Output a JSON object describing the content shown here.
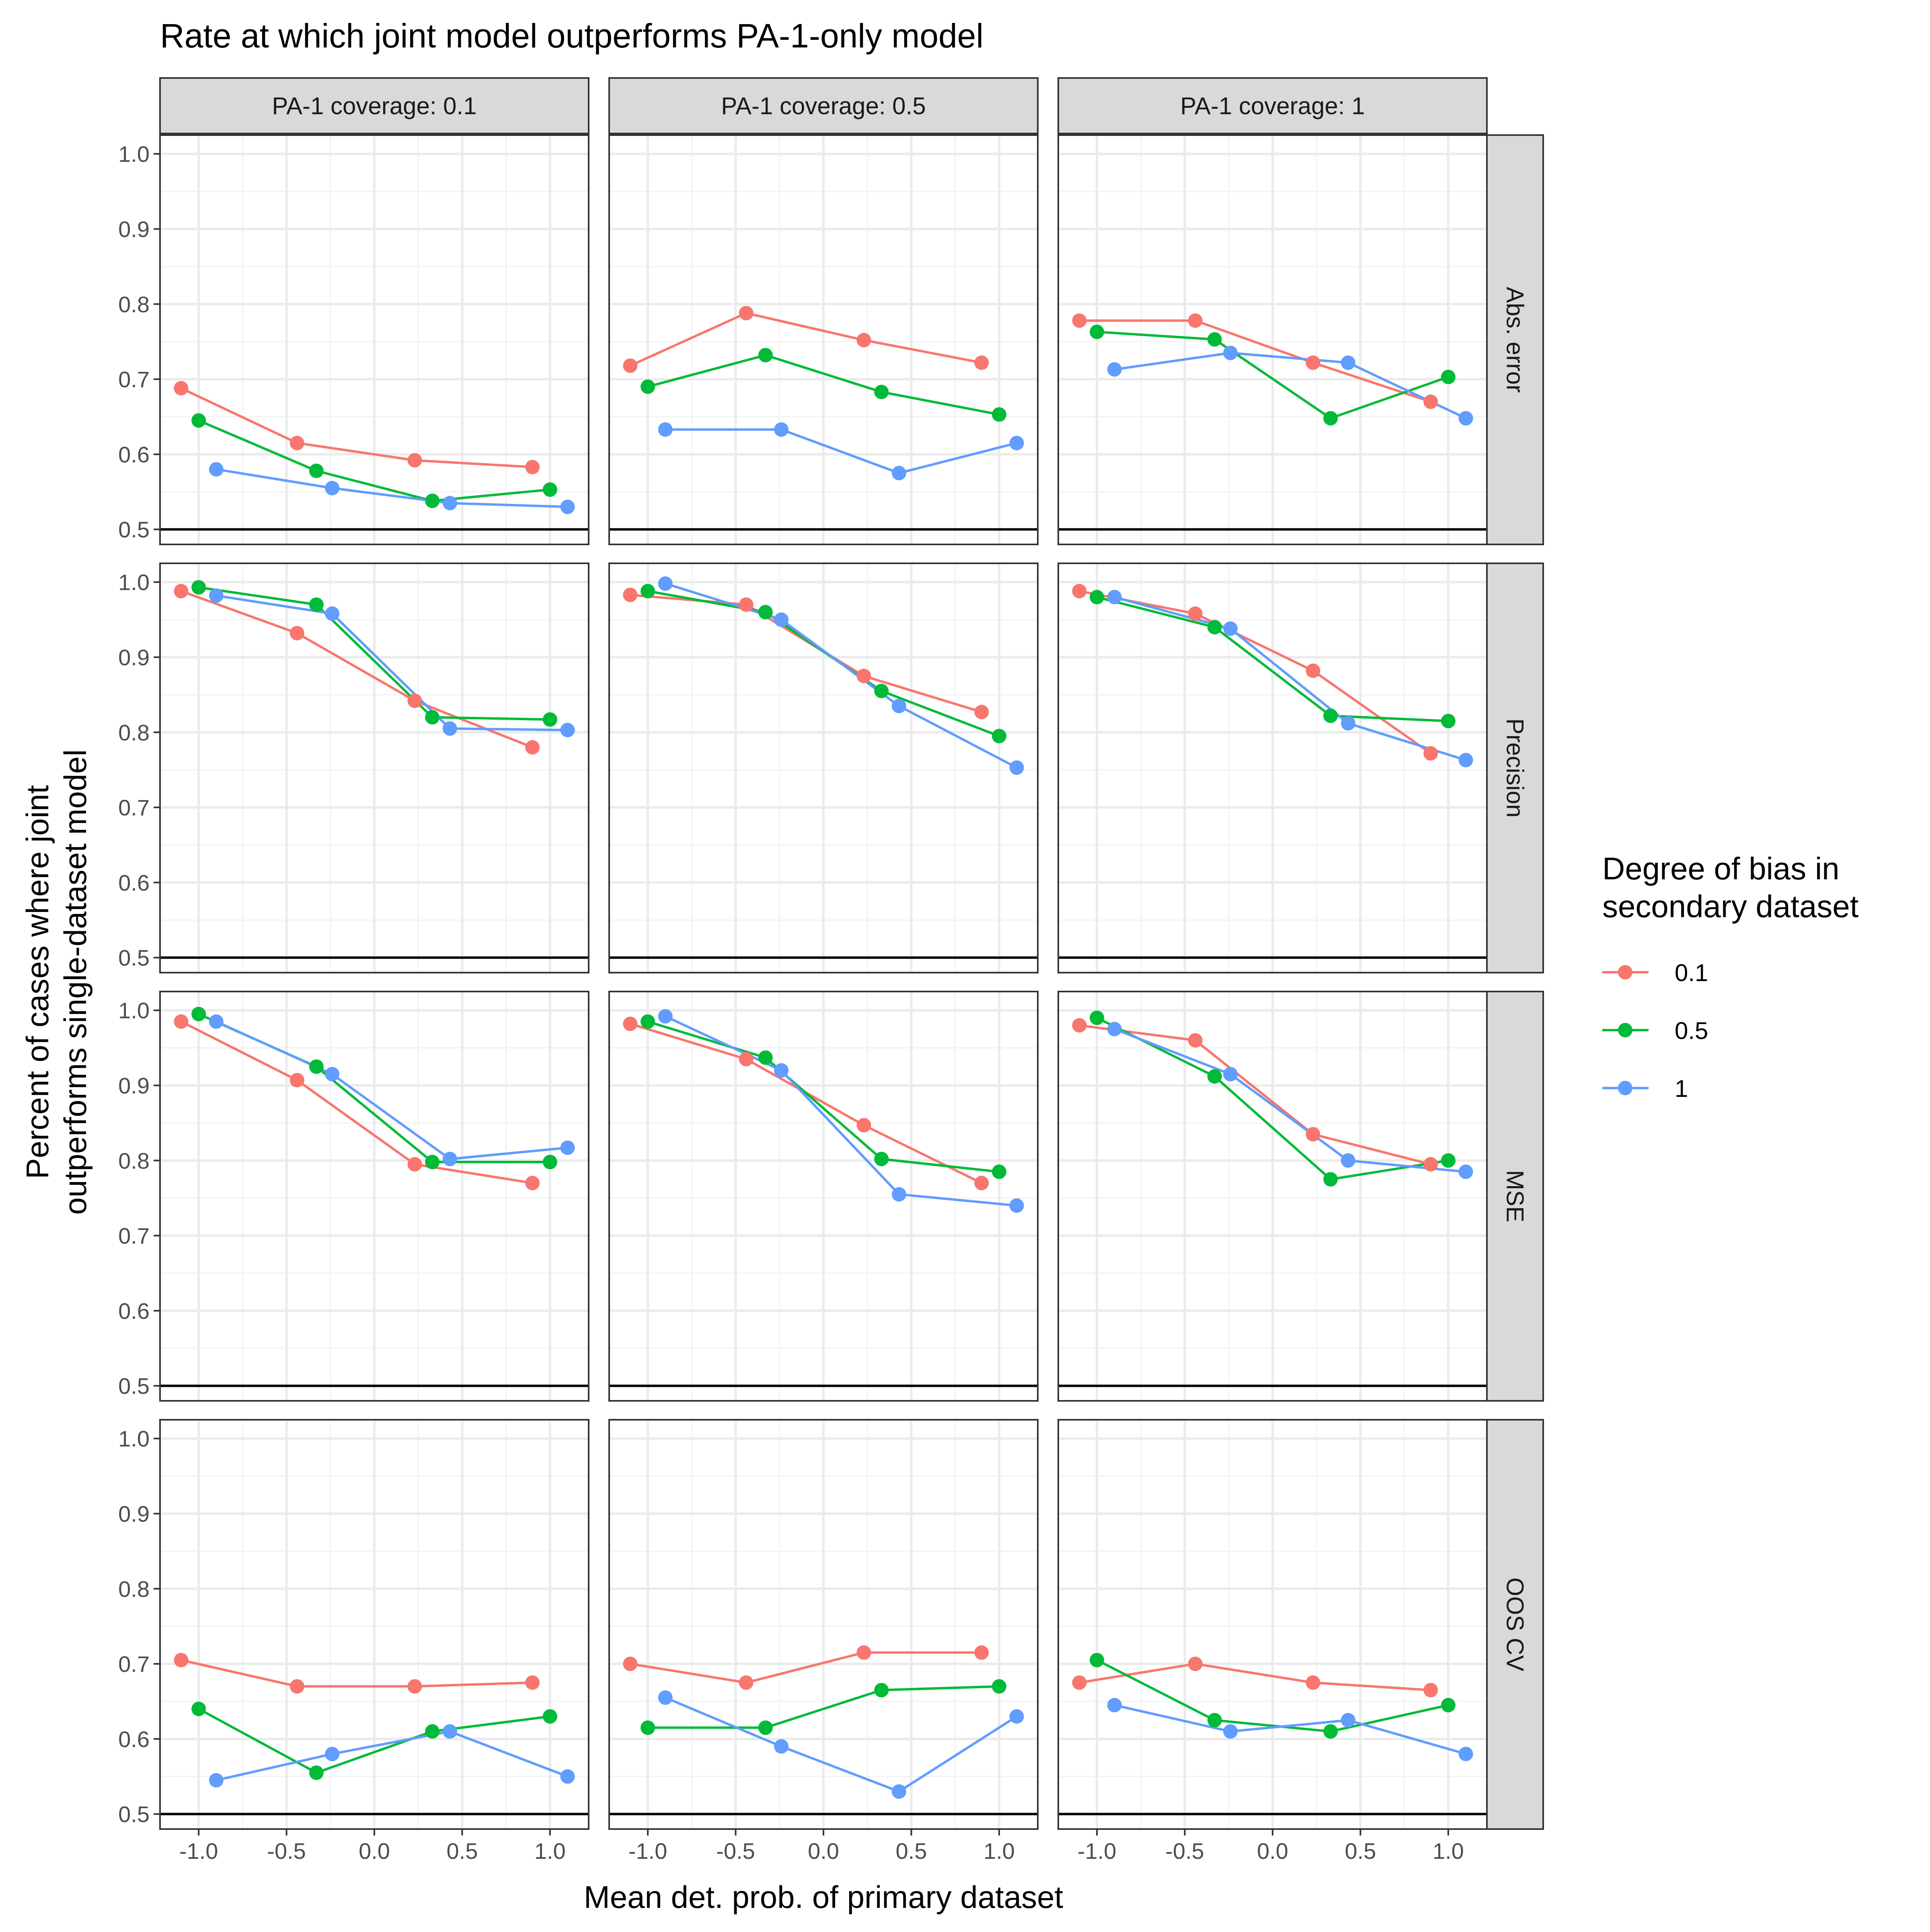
{
  "chart_data": {
    "type": "line",
    "title": "Rate at which joint model outperforms PA-1-only model",
    "xlabel": "Mean det. prob. of primary dataset",
    "ylabel_lines": [
      "Percent of cases where joint",
      "outperforms single-dataset model"
    ],
    "x_ticks": [
      -1.0,
      -0.5,
      0.0,
      0.5,
      1.0
    ],
    "x_tick_labels": [
      "-1.0",
      "-0.5",
      "0.0",
      "0.5",
      "1.0"
    ],
    "y_ticks": [
      0.5,
      0.6,
      0.7,
      0.8,
      0.9,
      1.0
    ],
    "y_tick_labels": [
      "0.5",
      "0.6",
      "0.7",
      "0.8",
      "0.9",
      "1.0"
    ],
    "xlim": [
      -1.22,
      1.22
    ],
    "ylim": [
      0.48,
      1.025
    ],
    "grid": true,
    "reference_line_y": 0.5,
    "legend": {
      "title_lines": [
        "Degree of bias in",
        "secondary dataset"
      ],
      "placement": "right",
      "entries": [
        {
          "label": "0.1",
          "color": "#F8766D"
        },
        {
          "label": "0.5",
          "color": "#00BA38"
        },
        {
          "label": "1",
          "color": "#619CFF"
        }
      ]
    },
    "columns": [
      "PA-1 coverage: 0.1",
      "PA-1 coverage: 0.5",
      "PA-1 coverage: 1"
    ],
    "rows": [
      "Abs. error",
      "Precision",
      "MSE",
      "OOS CV"
    ],
    "series_names": [
      "0.1",
      "0.5",
      "1"
    ],
    "x_by_series": [
      [
        -1.1,
        -0.44,
        0.23,
        0.9
      ],
      [
        -1.0,
        -0.33,
        0.33,
        1.0
      ],
      [
        -0.9,
        -0.24,
        0.43,
        1.1
      ]
    ],
    "panels": [
      [
        [
          [
            0.688,
            0.615,
            0.592,
            0.583
          ],
          [
            0.645,
            0.578,
            0.538,
            0.553
          ],
          [
            0.58,
            0.555,
            0.535,
            0.53
          ]
        ],
        [
          [
            0.718,
            0.788,
            0.752,
            0.722
          ],
          [
            0.69,
            0.732,
            0.683,
            0.653
          ],
          [
            0.633,
            0.633,
            0.575,
            0.615
          ]
        ],
        [
          [
            0.778,
            0.778,
            0.722,
            0.67
          ],
          [
            0.763,
            0.753,
            0.648,
            0.703
          ],
          [
            0.713,
            0.735,
            0.722,
            0.648
          ]
        ]
      ],
      [
        [
          [
            0.988,
            0.932,
            0.842,
            0.78
          ],
          [
            0.993,
            0.97,
            0.82,
            0.817
          ],
          [
            0.982,
            0.958,
            0.805,
            0.803
          ]
        ],
        [
          [
            0.983,
            0.97,
            0.875,
            0.827
          ],
          [
            0.988,
            0.96,
            0.855,
            0.795
          ],
          [
            0.998,
            0.95,
            0.835,
            0.753
          ]
        ],
        [
          [
            0.988,
            0.958,
            0.882,
            0.772
          ],
          [
            0.98,
            0.94,
            0.822,
            0.815
          ],
          [
            0.98,
            0.938,
            0.812,
            0.763
          ]
        ]
      ],
      [
        [
          [
            0.985,
            0.907,
            0.795,
            0.77
          ],
          [
            0.995,
            0.925,
            0.798,
            0.798
          ],
          [
            0.985,
            0.915,
            0.802,
            0.817
          ]
        ],
        [
          [
            0.982,
            0.935,
            0.847,
            0.77
          ],
          [
            0.985,
            0.937,
            0.802,
            0.785
          ],
          [
            0.992,
            0.92,
            0.755,
            0.74
          ]
        ],
        [
          [
            0.98,
            0.96,
            0.835,
            0.795
          ],
          [
            0.99,
            0.912,
            0.775,
            0.8
          ],
          [
            0.975,
            0.915,
            0.8,
            0.785
          ]
        ]
      ],
      [
        [
          [
            0.705,
            0.67,
            0.67,
            0.675
          ],
          [
            0.64,
            0.555,
            0.61,
            0.63
          ],
          [
            0.545,
            0.58,
            0.61,
            0.55
          ]
        ],
        [
          [
            0.7,
            0.675,
            0.715,
            0.715
          ],
          [
            0.615,
            0.615,
            0.665,
            0.67
          ],
          [
            0.655,
            0.59,
            0.53,
            0.63
          ]
        ],
        [
          [
            0.675,
            0.7,
            0.675,
            0.665
          ],
          [
            0.705,
            0.625,
            0.61,
            0.645
          ],
          [
            0.645,
            0.61,
            0.625,
            0.58
          ]
        ]
      ]
    ]
  }
}
